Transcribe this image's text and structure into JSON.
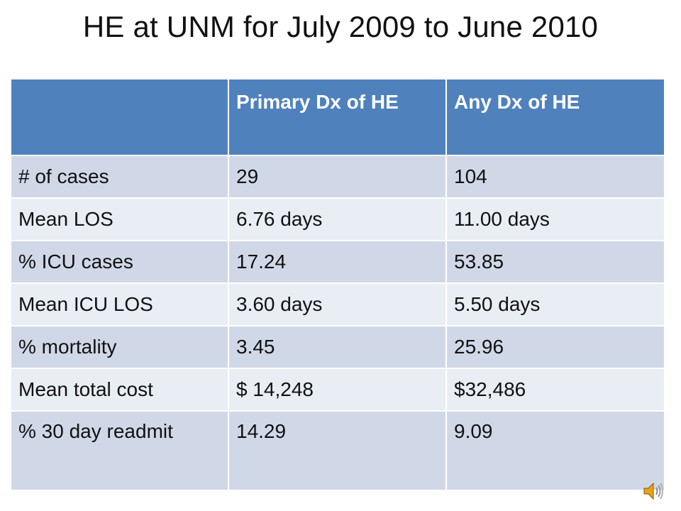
{
  "slide": {
    "title": "HE at UNM for July 2009 to June 2010"
  },
  "table": {
    "headers": [
      "",
      "Primary Dx of HE",
      "Any Dx of HE"
    ],
    "rows": [
      [
        "# of cases",
        "29",
        "104"
      ],
      [
        "Mean LOS",
        "6.76 days",
        "11.00 days"
      ],
      [
        "% ICU cases",
        "17.24",
        "53.85"
      ],
      [
        "Mean ICU LOS",
        "3.60 days",
        "5.50 days"
      ],
      [
        "% mortality",
        "3.45",
        "25.96"
      ],
      [
        "Mean total cost",
        "$ 14,248",
        "$32,486"
      ],
      [
        "% 30 day readmit",
        "14.29",
        "9.09"
      ]
    ]
  },
  "colors": {
    "header_bg": "#4f81bd",
    "row_odd_bg": "#d0d8e8",
    "row_even_bg": "#e9edf4",
    "speaker_icon": "#e8a317"
  },
  "icons": {
    "audio": "speaker-icon"
  }
}
